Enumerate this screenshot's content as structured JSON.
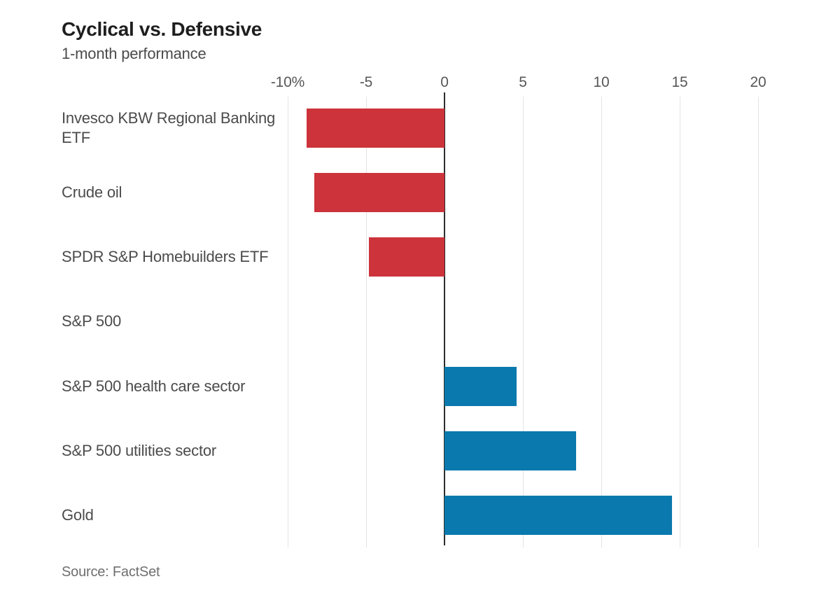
{
  "header": {
    "title": "Cyclical vs. Defensive",
    "subtitle": "1-month performance"
  },
  "source_note": "Source: FactSet",
  "colors": {
    "negative_bar": "#cc333a",
    "positive_bar": "#0a79ad",
    "gridline": "#e4e4e4",
    "zero_line": "#2d2d2d",
    "title_text": "#1e1e1e",
    "label_text": "#4b4b4b",
    "tick_text": "#575757",
    "source_text": "#6f6f6f"
  },
  "chart_data": {
    "type": "bar",
    "orientation": "horizontal",
    "title": "Cyclical vs. Defensive",
    "subtitle": "1-month performance",
    "categories": [
      "Invesco KBW Regional Banking ETF",
      "Crude oil",
      "SPDR S&P Homebuilders ETF",
      "S&P 500",
      "S&P 500 health care sector",
      "S&P 500 utilities sector",
      "Gold"
    ],
    "values": [
      -8.8,
      -8.3,
      -4.8,
      0,
      4.6,
      8.4,
      14.5
    ],
    "unit": "%",
    "xlabel": "",
    "ylabel": "",
    "xlim": [
      -10,
      20
    ],
    "xticks": [
      -10,
      -5,
      0,
      5,
      10,
      15,
      20
    ],
    "xtick_labels": [
      "-10%",
      "-5",
      "0",
      "5",
      "10",
      "15",
      "20"
    ],
    "grid": true,
    "legend": false,
    "color_rule": "negative values red, positive values blue",
    "source": "Source: FactSet"
  }
}
